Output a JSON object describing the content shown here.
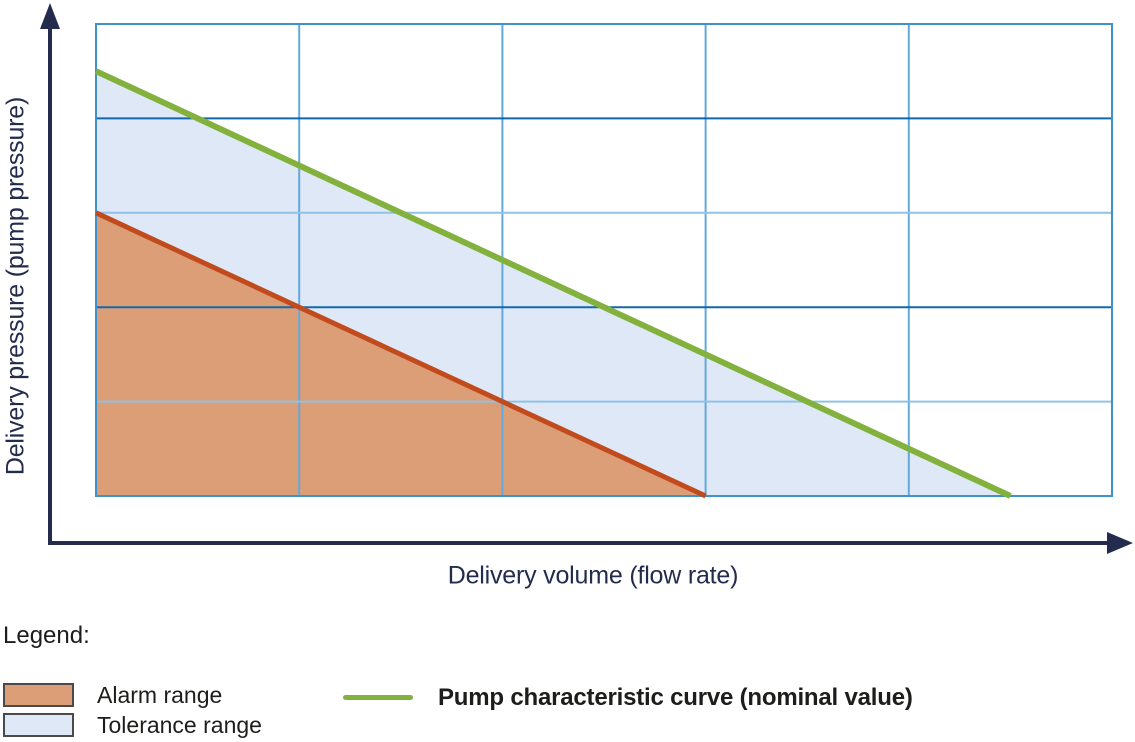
{
  "colors": {
    "axis_navy": "#242C4E",
    "grid_border_blue": "#3E92CC",
    "grid_vertical_blue": "#63A8DA",
    "grid_dark_blue": "#1068AE",
    "grid_light_blue": "#8FC2E6",
    "nominal_green": "#83B13D",
    "alarm_line_red": "#C24B1D",
    "alarm_fill_orange": "#DC9E77",
    "tolerance_fill_blue": "#DFE8F6",
    "text_black": "#1D1D1B"
  },
  "chart_data": {
    "type": "area",
    "title": "",
    "xlabel": "Delivery volume (flow rate)",
    "ylabel": "Delivery pressure (pump pressure)",
    "x_ticks": [],
    "y_ticks": [],
    "xlim_grid_units": [
      0,
      5
    ],
    "ylim_grid_units": [
      0,
      5
    ],
    "grid": {
      "columns": 5,
      "rows": 5,
      "on": true
    },
    "legend_position": "below",
    "series": [
      {
        "name": "Tolerance range",
        "type": "area",
        "fill": "#DFE8F6",
        "points": [
          [
            0,
            4.5
          ],
          [
            4.5,
            0
          ],
          [
            0,
            0
          ]
        ]
      },
      {
        "name": "Alarm range",
        "type": "area",
        "fill": "#DC9E77",
        "points": [
          [
            0,
            3
          ],
          [
            3,
            0
          ],
          [
            0,
            0
          ]
        ]
      },
      {
        "name": "Alarm range boundary",
        "type": "line",
        "color": "#C24B1D",
        "width": 5,
        "points": [
          [
            0,
            3
          ],
          [
            3,
            0
          ]
        ]
      },
      {
        "name": "Pump characteristic curve (nominal value)",
        "type": "line",
        "color": "#83B13D",
        "width": 6,
        "points": [
          [
            0,
            4.5
          ],
          [
            4.5,
            0
          ]
        ]
      }
    ]
  },
  "legend": {
    "title": "Legend:",
    "items": [
      {
        "label": "Alarm range",
        "swatch": "area",
        "color": "#DC9E77"
      },
      {
        "label": "Tolerance range",
        "swatch": "area",
        "color": "#DFE8F6"
      },
      {
        "label": "Pump characteristic curve (nominal value)",
        "swatch": "line",
        "color": "#83B13D"
      }
    ]
  }
}
